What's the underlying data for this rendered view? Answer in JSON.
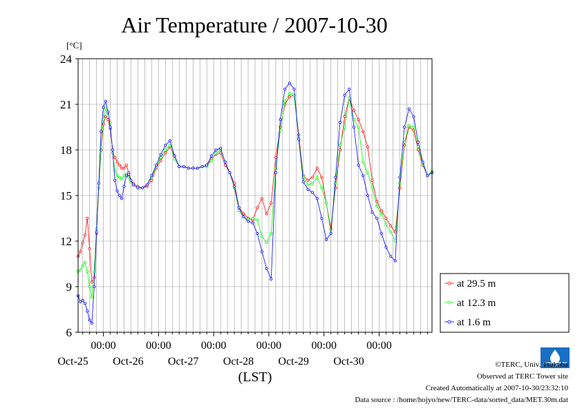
{
  "chart_data": {
    "type": "line",
    "title": "Air Temperature / 2007-10-30",
    "ylabel": "[°C]",
    "xlabel": "(LST)",
    "ylim": [
      6,
      24
    ],
    "yticks": [
      6,
      9,
      12,
      15,
      18,
      21,
      24
    ],
    "xlim": [
      "2007-10-24T13:00",
      "2007-10-30T23:00"
    ],
    "xticks": [
      {
        "time": "00:00",
        "date": "Oct-25"
      },
      {
        "time": "00:00",
        "date": "Oct-26"
      },
      {
        "time": "00:00",
        "date": "Oct-27"
      },
      {
        "time": "00:00",
        "date": "Oct-28"
      },
      {
        "time": "00:00",
        "date": "Oct-29"
      },
      {
        "time": "00:00",
        "date": "Oct-30"
      }
    ],
    "grid": true,
    "legend_position": "lower-right-outside",
    "x_hours": [
      0,
      1,
      2,
      3,
      4,
      5,
      6,
      7,
      8,
      9,
      10,
      11,
      12,
      13,
      14,
      15,
      16,
      17,
      18,
      19,
      20,
      21,
      22,
      23,
      24,
      26,
      28,
      30,
      32,
      34,
      36,
      38,
      40,
      42,
      44,
      46,
      48,
      50,
      52,
      54,
      56,
      58,
      60,
      62,
      64,
      66,
      68,
      70,
      72,
      74,
      76,
      78,
      80,
      82,
      84,
      86,
      88,
      90,
      92,
      94,
      96,
      98,
      100,
      102,
      104,
      106,
      108,
      110,
      112,
      114,
      116,
      118,
      120,
      122,
      124,
      126,
      128,
      130,
      132,
      134,
      136,
      138,
      140,
      142,
      144,
      146,
      148,
      150,
      152,
      154
    ],
    "series": [
      {
        "name": "at 29.5 m",
        "color": "#ff0000",
        "values": [
          11.0,
          11.3,
          11.9,
          12.4,
          13.5,
          11.5,
          9.3,
          9.6,
          12.5,
          15.5,
          18.0,
          19.7,
          20.2,
          20.0,
          19.4,
          18.0,
          17.5,
          17.2,
          17.0,
          16.8,
          16.8,
          17.0,
          16.5,
          16.0,
          15.8,
          15.6,
          15.5,
          15.6,
          16.0,
          16.8,
          17.3,
          17.8,
          18.2,
          17.6,
          16.9,
          16.9,
          16.8,
          16.8,
          16.8,
          16.9,
          17.0,
          17.4,
          17.7,
          17.8,
          17.0,
          16.5,
          15.8,
          14.2,
          13.8,
          13.5,
          13.4,
          14.2,
          14.8,
          13.8,
          14.5,
          17.5,
          19.5,
          21.0,
          21.5,
          21.6,
          19.0,
          16.3,
          16.0,
          16.2,
          16.8,
          16.2,
          14.5,
          12.8,
          15.5,
          18.0,
          20.2,
          21.4,
          20.6,
          20.0,
          19.2,
          18.2,
          16.0,
          14.6,
          14.0,
          13.5,
          13.0,
          12.6,
          15.5,
          18.3,
          19.5,
          19.3,
          18.0,
          17.0,
          16.3,
          16.5
        ]
      },
      {
        "name": "at 12.3 m",
        "color": "#00ff00",
        "values": [
          10.0,
          10.1,
          10.4,
          10.6,
          10.0,
          9.0,
          8.3,
          10.0,
          12.8,
          15.5,
          18.2,
          20.0,
          20.7,
          20.4,
          19.8,
          17.8,
          16.6,
          16.3,
          16.2,
          16.1,
          16.3,
          16.4,
          16.2,
          15.9,
          15.7,
          15.5,
          15.5,
          15.7,
          16.2,
          16.9,
          17.5,
          18.0,
          18.3,
          17.4,
          16.9,
          16.9,
          16.8,
          16.8,
          16.8,
          16.9,
          16.9,
          17.3,
          17.8,
          18.0,
          17.2,
          16.5,
          15.5,
          14.0,
          13.6,
          13.4,
          13.5,
          13.4,
          12.3,
          11.9,
          12.5,
          16.8,
          19.3,
          21.2,
          21.7,
          21.6,
          18.8,
          16.2,
          15.7,
          15.8,
          16.2,
          15.5,
          14.5,
          12.5,
          15.8,
          18.3,
          19.5,
          21.4,
          20.0,
          19.5,
          17.2,
          16.5,
          15.5,
          14.3,
          13.8,
          13.1,
          12.6,
          12.0,
          15.8,
          18.5,
          19.6,
          19.5,
          18.2,
          17.1,
          16.3,
          16.6
        ]
      },
      {
        "name": "at 1.6 m",
        "color": "#0000ff",
        "values": [
          8.4,
          8.0,
          8.1,
          7.9,
          7.4,
          6.8,
          6.6,
          9.0,
          12.6,
          15.8,
          19.2,
          20.8,
          21.2,
          20.5,
          19.5,
          18.0,
          16.0,
          15.3,
          15.0,
          14.8,
          15.6,
          16.3,
          16.4,
          16.0,
          15.7,
          15.5,
          15.5,
          15.7,
          16.3,
          17.0,
          17.7,
          18.3,
          18.6,
          17.6,
          16.9,
          16.9,
          16.8,
          16.8,
          16.8,
          16.9,
          17.0,
          17.6,
          18.0,
          18.1,
          17.2,
          16.5,
          15.6,
          14.2,
          13.6,
          13.3,
          13.2,
          12.5,
          11.3,
          10.2,
          9.5,
          16.5,
          20.0,
          22.0,
          22.4,
          22.0,
          18.7,
          15.9,
          15.4,
          15.2,
          14.8,
          13.5,
          12.1,
          12.5,
          16.2,
          19.8,
          21.6,
          22.0,
          19.5,
          17.0,
          16.3,
          15.0,
          13.9,
          13.5,
          12.5,
          11.6,
          11.0,
          10.7,
          16.2,
          19.5,
          20.7,
          20.2,
          18.5,
          17.2,
          16.3,
          16.5
        ]
      }
    ]
  },
  "credits": {
    "copyright": "©TERC, Univ. Tsukuba",
    "observed": "Observed at TERC Tower site",
    "created": "Created Automatically at 2007-10-30/23:32:10",
    "source": "Data source : /home/hojyo/new/TERC-data/sorted_data/MET.30m.dat",
    "logo_text": "TERC"
  }
}
